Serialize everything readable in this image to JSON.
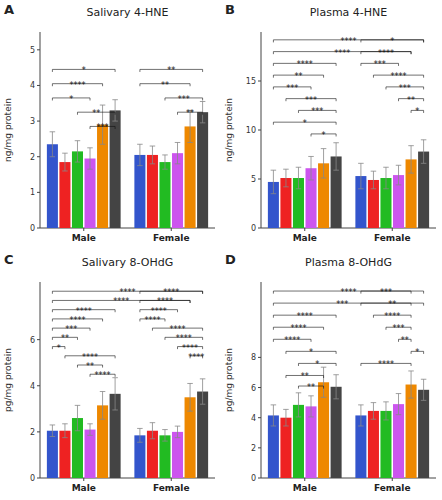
{
  "chart_data": [
    {
      "type": "bar",
      "panel_label": "A",
      "title": "Salivary 4-HNE",
      "y_label": "ng/mg protein",
      "categories": [
        "Male",
        "Female"
      ],
      "series": [
        {
          "color": "#3355CC",
          "values": [
            2.35,
            2.05
          ],
          "errors": [
            0.35,
            0.3
          ]
        },
        {
          "color": "#EE2222",
          "values": [
            1.85,
            2.05
          ],
          "errors": [
            0.25,
            0.25
          ]
        },
        {
          "color": "#22BB22",
          "values": [
            2.15,
            1.85
          ],
          "errors": [
            0.3,
            0.2
          ]
        },
        {
          "color": "#CC55EE",
          "values": [
            1.95,
            2.1
          ],
          "errors": [
            0.3,
            0.3
          ]
        },
        {
          "color": "#EE8800",
          "values": [
            2.9,
            2.85
          ],
          "errors": [
            0.55,
            0.45
          ]
        },
        {
          "color": "#444444",
          "values": [
            3.3,
            3.25
          ],
          "errors": [
            0.3,
            0.3
          ]
        }
      ],
      "ylim": [
        0,
        5.5
      ],
      "yticks": [
        0,
        1,
        2,
        3,
        4,
        5
      ],
      "grid": false,
      "annotations": [
        {
          "text": "*",
          "y": 4.45,
          "from_category": "Male",
          "from_series": 0,
          "to_category": "Male",
          "to_series": 5
        },
        {
          "text": "****",
          "y": 4.05,
          "from_category": "Male",
          "from_series": 0,
          "to_category": "Male",
          "to_series": 4
        },
        {
          "text": "*",
          "y": 3.65,
          "from_category": "Male",
          "from_series": 0,
          "to_category": "Male",
          "to_series": 3
        },
        {
          "text": "**",
          "y": 3.25,
          "from_category": "Male",
          "from_series": 2,
          "to_category": "Male",
          "to_series": 5
        },
        {
          "text": "***",
          "y": 2.85,
          "from_category": "Male",
          "from_series": 3,
          "to_category": "Male",
          "to_series": 5
        },
        {
          "text": "**",
          "y": 4.45,
          "from_category": "Female",
          "from_series": 0,
          "to_category": "Female",
          "to_series": 5
        },
        {
          "text": "**",
          "y": 4.05,
          "from_category": "Female",
          "from_series": 0,
          "to_category": "Female",
          "to_series": 4
        },
        {
          "text": "***",
          "y": 3.65,
          "from_category": "Female",
          "from_series": 2,
          "to_category": "Female",
          "to_series": 5
        },
        {
          "text": "**",
          "y": 3.25,
          "from_category": "Female",
          "from_series": 3,
          "to_category": "Female",
          "to_series": 5
        }
      ]
    },
    {
      "type": "bar",
      "panel_label": "B",
      "title": "Plasma 4-HNE",
      "y_label": "ng/mg protein",
      "categories": [
        "Male",
        "Female"
      ],
      "series": [
        {
          "color": "#3355CC",
          "values": [
            4.7,
            5.3
          ],
          "errors": [
            1.2,
            1.3
          ]
        },
        {
          "color": "#EE2222",
          "values": [
            5.1,
            4.9
          ],
          "errors": [
            0.9,
            0.9
          ]
        },
        {
          "color": "#22BB22",
          "values": [
            5.1,
            5.1
          ],
          "errors": [
            1.1,
            1.1
          ]
        },
        {
          "color": "#CC55EE",
          "values": [
            6.1,
            5.4
          ],
          "errors": [
            1.2,
            1.0
          ]
        },
        {
          "color": "#EE8800",
          "values": [
            6.6,
            7.0
          ],
          "errors": [
            1.5,
            1.4
          ]
        },
        {
          "color": "#444444",
          "values": [
            7.3,
            7.8
          ],
          "errors": [
            1.4,
            1.2
          ]
        }
      ],
      "ylim": [
        0,
        20
      ],
      "yticks": [
        0,
        5,
        10,
        15
      ],
      "grid": false,
      "annotations": [
        {
          "text": "****",
          "y": 19.2,
          "from_category": "Male",
          "from_series": 0,
          "to_category": "Female",
          "to_series": 5
        },
        {
          "text": "****",
          "y": 18.0,
          "from_category": "Male",
          "from_series": 0,
          "to_category": "Female",
          "to_series": 4
        },
        {
          "text": "****",
          "y": 16.8,
          "from_category": "Male",
          "from_series": 0,
          "to_category": "Male",
          "to_series": 5
        },
        {
          "text": "**",
          "y": 15.6,
          "from_category": "Male",
          "from_series": 0,
          "to_category": "Male",
          "to_series": 4
        },
        {
          "text": "***",
          "y": 14.4,
          "from_category": "Male",
          "from_series": 0,
          "to_category": "Male",
          "to_series": 3
        },
        {
          "text": "***",
          "y": 13.2,
          "from_category": "Male",
          "from_series": 1,
          "to_category": "Male",
          "to_series": 5
        },
        {
          "text": "***",
          "y": 12.0,
          "from_category": "Male",
          "from_series": 2,
          "to_category": "Male",
          "to_series": 5
        },
        {
          "text": "*",
          "y": 10.8,
          "from_category": "Male",
          "from_series": 0,
          "to_category": "Male",
          "to_series": 5
        },
        {
          "text": "*",
          "y": 9.6,
          "from_category": "Male",
          "from_series": 3,
          "to_category": "Male",
          "to_series": 5
        },
        {
          "text": "*",
          "y": 19.2,
          "from_category": "Female",
          "from_series": 0,
          "to_category": "Female",
          "to_series": 5
        },
        {
          "text": "****",
          "y": 18.0,
          "from_category": "Female",
          "from_series": 0,
          "to_category": "Female",
          "to_series": 4
        },
        {
          "text": "***",
          "y": 16.8,
          "from_category": "Female",
          "from_series": 0,
          "to_category": "Female",
          "to_series": 3
        },
        {
          "text": "****",
          "y": 15.6,
          "from_category": "Female",
          "from_series": 1,
          "to_category": "Female",
          "to_series": 5
        },
        {
          "text": "***",
          "y": 14.4,
          "from_category": "Female",
          "from_series": 2,
          "to_category": "Female",
          "to_series": 5
        },
        {
          "text": "**",
          "y": 13.2,
          "from_category": "Female",
          "from_series": 3,
          "to_category": "Female",
          "to_series": 5
        },
        {
          "text": "*",
          "y": 12.0,
          "from_category": "Female",
          "from_series": 4,
          "to_category": "Female",
          "to_series": 5
        }
      ]
    },
    {
      "type": "bar",
      "panel_label": "C",
      "title": "Salivary 8-OHdG",
      "y_label": "pg/mg protein",
      "categories": [
        "Male",
        "Female"
      ],
      "series": [
        {
          "color": "#3355CC",
          "values": [
            2.05,
            1.85
          ],
          "errors": [
            0.25,
            0.3
          ]
        },
        {
          "color": "#EE2222",
          "values": [
            2.05,
            2.05
          ],
          "errors": [
            0.3,
            0.35
          ]
        },
        {
          "color": "#22BB22",
          "values": [
            2.6,
            1.85
          ],
          "errors": [
            0.55,
            0.25
          ]
        },
        {
          "color": "#CC55EE",
          "values": [
            2.1,
            2.0
          ],
          "errors": [
            0.25,
            0.25
          ]
        },
        {
          "color": "#EE8800",
          "values": [
            3.15,
            3.5
          ],
          "errors": [
            0.6,
            0.6
          ]
        },
        {
          "color": "#444444",
          "values": [
            3.65,
            3.75
          ],
          "errors": [
            0.7,
            0.55
          ]
        }
      ],
      "ylim": [
        0,
        8.5
      ],
      "yticks": [
        0,
        2,
        4,
        6
      ],
      "grid": false,
      "annotations": [
        {
          "text": "****",
          "y": 8.1,
          "from_category": "Male",
          "from_series": 0,
          "to_category": "Female",
          "to_series": 5
        },
        {
          "text": "****",
          "y": 7.7,
          "from_category": "Male",
          "from_series": 0,
          "to_category": "Female",
          "to_series": 4
        },
        {
          "text": "****",
          "y": 7.3,
          "from_category": "Male",
          "from_series": 0,
          "to_category": "Male",
          "to_series": 5
        },
        {
          "text": "****",
          "y": 6.9,
          "from_category": "Male",
          "from_series": 0,
          "to_category": "Male",
          "to_series": 4
        },
        {
          "text": "***",
          "y": 6.5,
          "from_category": "Male",
          "from_series": 0,
          "to_category": "Male",
          "to_series": 3
        },
        {
          "text": "**",
          "y": 6.1,
          "from_category": "Male",
          "from_series": 0,
          "to_category": "Male",
          "to_series": 2
        },
        {
          "text": "*",
          "y": 5.7,
          "from_category": "Male",
          "from_series": 0,
          "to_category": "Male",
          "to_series": 1
        },
        {
          "text": "****",
          "y": 5.3,
          "from_category": "Male",
          "from_series": 1,
          "to_category": "Male",
          "to_series": 5
        },
        {
          "text": "**",
          "y": 4.9,
          "from_category": "Male",
          "from_series": 2,
          "to_category": "Male",
          "to_series": 4
        },
        {
          "text": "****",
          "y": 4.5,
          "from_category": "Male",
          "from_series": 3,
          "to_category": "Male",
          "to_series": 5
        },
        {
          "text": "****",
          "y": 8.1,
          "from_category": "Female",
          "from_series": 0,
          "to_category": "Female",
          "to_series": 5
        },
        {
          "text": "****",
          "y": 7.7,
          "from_category": "Female",
          "from_series": 0,
          "to_category": "Female",
          "to_series": 4
        },
        {
          "text": "****",
          "y": 7.3,
          "from_category": "Female",
          "from_series": 0,
          "to_category": "Female",
          "to_series": 3
        },
        {
          "text": "****",
          "y": 6.9,
          "from_category": "Female",
          "from_series": 0,
          "to_category": "Female",
          "to_series": 2
        },
        {
          "text": "****",
          "y": 6.5,
          "from_category": "Female",
          "from_series": 1,
          "to_category": "Female",
          "to_series": 5
        },
        {
          "text": "****",
          "y": 6.1,
          "from_category": "Female",
          "from_series": 2,
          "to_category": "Female",
          "to_series": 5
        },
        {
          "text": "****",
          "y": 5.7,
          "from_category": "Female",
          "from_series": 3,
          "to_category": "Female",
          "to_series": 5
        },
        {
          "text": "****",
          "y": 5.3,
          "from_category": "Female",
          "from_series": 4,
          "to_category": "Female",
          "to_series": 5
        }
      ]
    },
    {
      "type": "bar",
      "panel_label": "D",
      "title": "Plasma 8-OHdG",
      "y_label": "pg/mg protein",
      "categories": [
        "Male",
        "Female"
      ],
      "series": [
        {
          "color": "#3355CC",
          "values": [
            4.15,
            4.15
          ],
          "errors": [
            0.7,
            0.7
          ]
        },
        {
          "color": "#EE2222",
          "values": [
            4.0,
            4.45
          ],
          "errors": [
            0.55,
            0.55
          ]
        },
        {
          "color": "#22BB22",
          "values": [
            4.85,
            4.45
          ],
          "errors": [
            0.8,
            0.6
          ]
        },
        {
          "color": "#CC55EE",
          "values": [
            4.75,
            4.9
          ],
          "errors": [
            0.7,
            0.7
          ]
        },
        {
          "color": "#EE8800",
          "values": [
            6.35,
            6.2
          ],
          "errors": [
            1.0,
            0.9
          ]
        },
        {
          "color": "#444444",
          "values": [
            6.05,
            5.85
          ],
          "errors": [
            0.8,
            0.7
          ]
        }
      ],
      "ylim": [
        0,
        13
      ],
      "yticks": [
        0,
        2,
        4,
        6,
        8
      ],
      "grid": false,
      "annotations": [
        {
          "text": "****",
          "y": 12.4,
          "from_category": "Male",
          "from_series": 0,
          "to_category": "Female",
          "to_series": 5
        },
        {
          "text": "***",
          "y": 11.6,
          "from_category": "Male",
          "from_series": 0,
          "to_category": "Female",
          "to_series": 4
        },
        {
          "text": "****",
          "y": 10.8,
          "from_category": "Male",
          "from_series": 0,
          "to_category": "Male",
          "to_series": 5
        },
        {
          "text": "****",
          "y": 10.0,
          "from_category": "Male",
          "from_series": 0,
          "to_category": "Male",
          "to_series": 4
        },
        {
          "text": "****",
          "y": 9.2,
          "from_category": "Male",
          "from_series": 0,
          "to_category": "Male",
          "to_series": 3
        },
        {
          "text": "*",
          "y": 8.4,
          "from_category": "Male",
          "from_series": 1,
          "to_category": "Male",
          "to_series": 5
        },
        {
          "text": "*",
          "y": 7.6,
          "from_category": "Male",
          "from_series": 2,
          "to_category": "Male",
          "to_series": 5
        },
        {
          "text": "**",
          "y": 6.8,
          "from_category": "Male",
          "from_series": 1,
          "to_category": "Male",
          "to_series": 4
        },
        {
          "text": "**",
          "y": 6.1,
          "from_category": "Male",
          "from_series": 2,
          "to_category": "Male",
          "to_series": 4
        },
        {
          "text": "***",
          "y": 12.4,
          "from_category": "Female",
          "from_series": 0,
          "to_category": "Female",
          "to_series": 4
        },
        {
          "text": "**",
          "y": 11.6,
          "from_category": "Female",
          "from_series": 0,
          "to_category": "Female",
          "to_series": 5
        },
        {
          "text": "****",
          "y": 10.8,
          "from_category": "Female",
          "from_series": 1,
          "to_category": "Female",
          "to_series": 4
        },
        {
          "text": "***",
          "y": 10.0,
          "from_category": "Female",
          "from_series": 2,
          "to_category": "Female",
          "to_series": 4
        },
        {
          "text": "**",
          "y": 9.2,
          "from_category": "Female",
          "from_series": 3,
          "to_category": "Female",
          "to_series": 4
        },
        {
          "text": "*",
          "y": 8.4,
          "from_category": "Female",
          "from_series": 4,
          "to_category": "Female",
          "to_series": 5
        },
        {
          "text": "****",
          "y": 7.6,
          "from_category": "Female",
          "from_series": 0,
          "to_category": "Female",
          "to_series": 4
        }
      ]
    }
  ]
}
